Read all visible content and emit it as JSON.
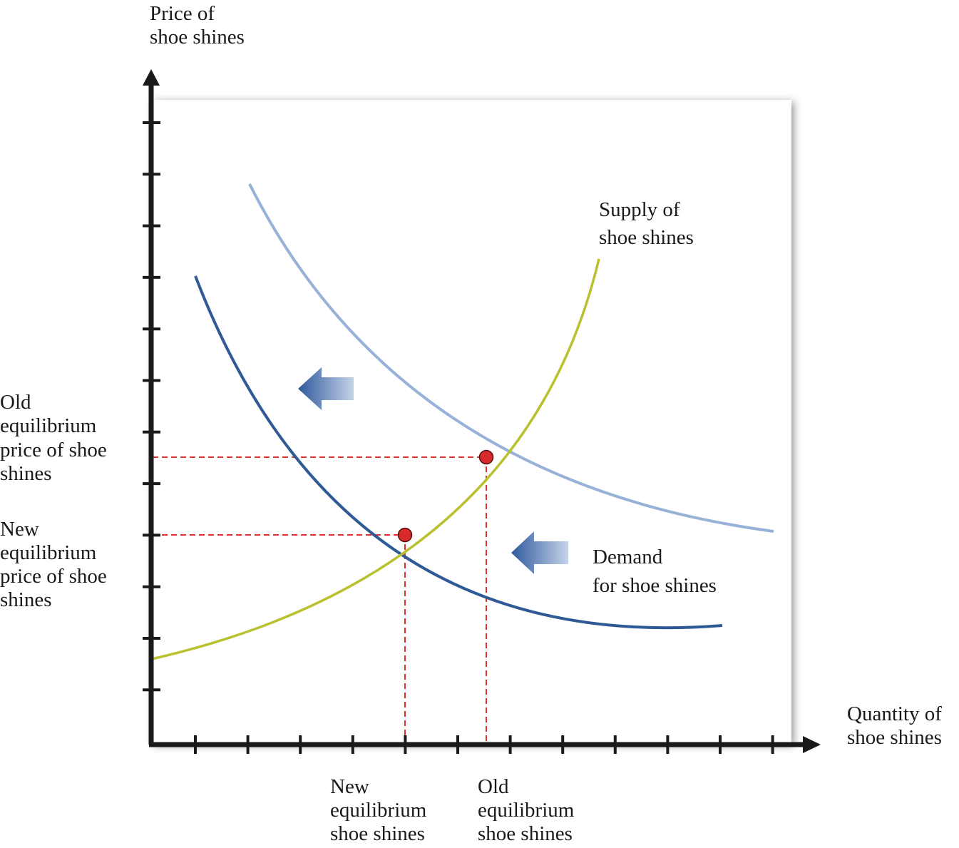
{
  "labels": {
    "y_axis": [
      "Price of",
      "shoe shines"
    ],
    "x_axis": [
      "Quantity of",
      "shoe shines"
    ],
    "supply": [
      "Supply of",
      "shoe shines"
    ],
    "demand": [
      "Demand",
      "for shoe shines"
    ],
    "old_price": [
      "Old",
      "equilibrium",
      "price of shoe",
      "shines"
    ],
    "new_price": [
      "New",
      "equilibrium",
      "price of shoe",
      "shines"
    ],
    "new_quantity": [
      "New",
      "equilibrium",
      "shoe shines"
    ],
    "old_quantity": [
      "Old",
      "equilibrium",
      "shoe shines"
    ]
  },
  "colors": {
    "axis": "#1a1a1a",
    "supply": "#b9c12e",
    "old_demand": "#97b1d8",
    "new_demand": "#2f5a96",
    "guide": "#e0302d",
    "point": "#d82a2a",
    "arrow": "#3a66a8"
  }
}
